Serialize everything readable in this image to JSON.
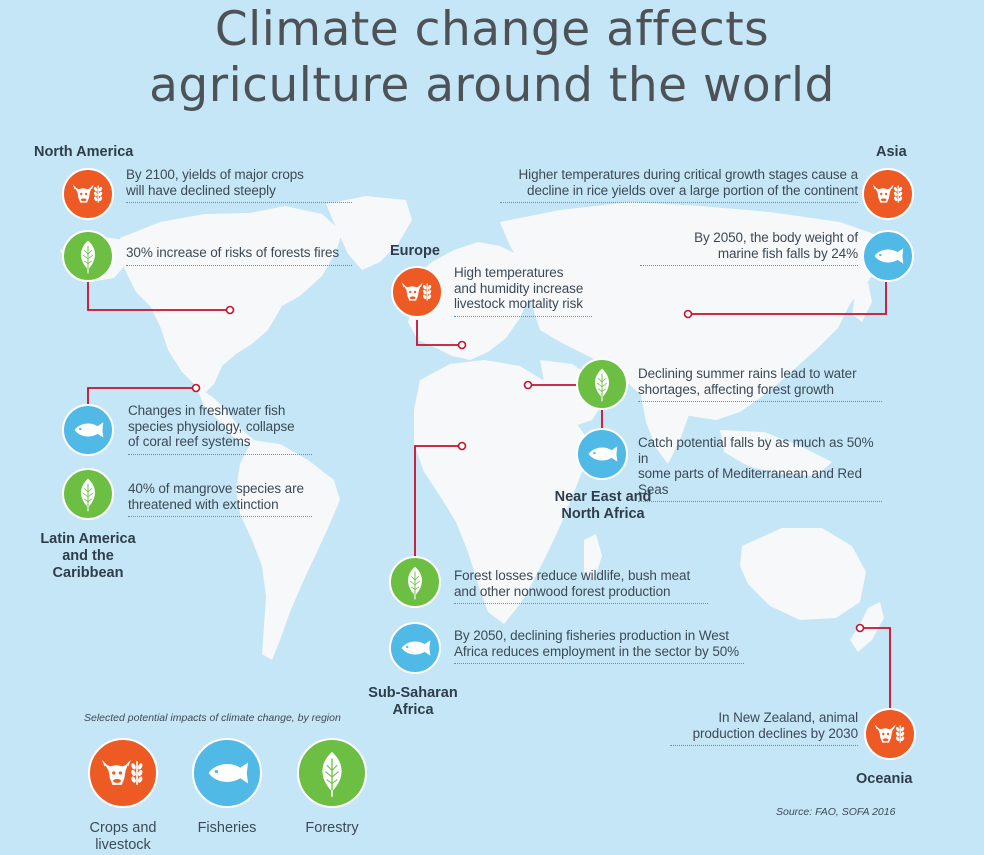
{
  "title": [
    "Climate change affects",
    "agriculture around the world"
  ],
  "colors": {
    "crops": "#ee5a24",
    "fisheries": "#50b9e6",
    "forestry": "#6cbf43",
    "connector": "#c8102e",
    "land": "#f7f8f9",
    "ocean": "#c5e6f7"
  },
  "regions": {
    "north_america": {
      "label": [
        "North America"
      ],
      "impacts": [
        {
          "category": "crops",
          "icon": "cow-wheat-icon",
          "text": [
            "By 2100, yields of major crops",
            "will have declined steeply"
          ]
        },
        {
          "category": "forestry",
          "icon": "leaf-icon",
          "text": [
            "30% increase of risks of forests fires"
          ]
        }
      ]
    },
    "asia": {
      "label": [
        "Asia"
      ],
      "impacts": [
        {
          "category": "crops",
          "icon": "cow-wheat-icon",
          "text": [
            "Higher temperatures during critical growth stages cause a",
            "decline in rice yields over a large portion of the continent"
          ]
        },
        {
          "category": "fisheries",
          "icon": "fish-icon",
          "text": [
            "By 2050, the body weight of",
            "marine fish falls by 24%"
          ]
        }
      ]
    },
    "europe": {
      "label": [
        "Europe"
      ],
      "impacts": [
        {
          "category": "crops",
          "icon": "cow-wheat-icon",
          "text": [
            "High temperatures",
            "and humidity increase",
            "livestock mortality risk"
          ]
        }
      ]
    },
    "latin_america": {
      "label": [
        "Latin America",
        "and the",
        "Caribbean"
      ],
      "impacts": [
        {
          "category": "fisheries",
          "icon": "fish-icon",
          "text": [
            "Changes in freshwater fish",
            "species physiology, collapse",
            "of coral reef systems"
          ]
        },
        {
          "category": "forestry",
          "icon": "leaf-icon",
          "text": [
            "40% of mangrove species are",
            "threatened with extinction"
          ]
        }
      ]
    },
    "near_east": {
      "label": [
        "Near East and",
        "North Africa"
      ],
      "impacts": [
        {
          "category": "forestry",
          "icon": "leaf-icon",
          "text": [
            "Declining summer rains lead to water",
            "shortages, affecting forest growth"
          ]
        },
        {
          "category": "fisheries",
          "icon": "fish-icon",
          "text": [
            "Catch potential falls by as much as 50% in",
            "some parts of Mediterranean and Red Seas"
          ]
        }
      ]
    },
    "sub_saharan": {
      "label": [
        "Sub-Saharan",
        "Africa"
      ],
      "impacts": [
        {
          "category": "forestry",
          "icon": "leaf-icon",
          "text": [
            "Forest losses reduce wildlife, bush meat",
            "and other nonwood forest production"
          ]
        },
        {
          "category": "fisheries",
          "icon": "fish-icon",
          "text": [
            "By 2050, declining fisheries production in West",
            "Africa reduces employment in the sector by 50%"
          ]
        }
      ]
    },
    "oceania": {
      "label": [
        "Oceania"
      ],
      "impacts": [
        {
          "category": "crops",
          "icon": "cow-wheat-icon",
          "text": [
            "In New Zealand, animal",
            "production declines by 2030"
          ]
        }
      ]
    }
  },
  "legend": {
    "caption": "Selected potential impacts of climate change, by region",
    "items": [
      {
        "category": "crops",
        "icon": "cow-wheat-icon",
        "label": [
          "Crops and",
          "livestock"
        ]
      },
      {
        "category": "fisheries",
        "icon": "fish-icon",
        "label": [
          "Fisheries"
        ]
      },
      {
        "category": "forestry",
        "icon": "leaf-icon",
        "label": [
          "Forestry"
        ]
      }
    ]
  },
  "source": "Source: FAO, SOFA 2016"
}
